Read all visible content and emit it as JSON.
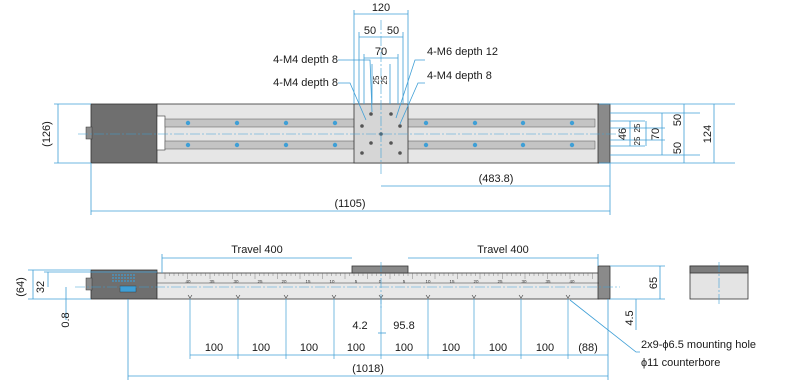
{
  "colors": {
    "dimension": "#3f9fd6",
    "body_dark": "#6f6f6f",
    "body_light": "#e2e2e2",
    "rail": "#bdbdbd",
    "hole": "#3f9fd6"
  },
  "top_view": {
    "dims": {
      "d120": "120",
      "d50a": "50",
      "d50b": "50",
      "d70": "70",
      "d25a": "25",
      "d25b": "25",
      "d126": "(126)",
      "d483": "(483.8)",
      "d1105": "(1105)",
      "d46": "46",
      "d25c": "25",
      "d25d": "25",
      "d70r": "70",
      "d50r1": "50",
      "d50r2": "50",
      "d124": "124"
    },
    "callouts": {
      "m4_a": "4-M4 depth 8",
      "m4_b": "4-M4 depth 8",
      "m6": "4-M6 depth 12",
      "m4_c": "4-M4 depth 8"
    }
  },
  "front_view": {
    "travel_left": "Travel 400",
    "travel_right": "Travel 400",
    "scale_numbers": [
      "40",
      "35",
      "30",
      "25",
      "20",
      "15",
      "10",
      "5",
      "0",
      "5",
      "10",
      "15",
      "20",
      "25",
      "30",
      "35",
      "40"
    ],
    "dims": {
      "d64": "(64)",
      "d32": "32",
      "d08": "0.8",
      "d65": "65",
      "d45": "4.5",
      "d42": "4.2",
      "d958": "95.8",
      "pitch": [
        "100",
        "100",
        "100",
        "100",
        "100",
        "100",
        "100",
        "100"
      ],
      "d88": "(88)",
      "d1018": "(1018)"
    },
    "callout_line1": "2x9-ϕ6.5 mounting hole",
    "callout_line2": "ϕ11 counterbore"
  }
}
